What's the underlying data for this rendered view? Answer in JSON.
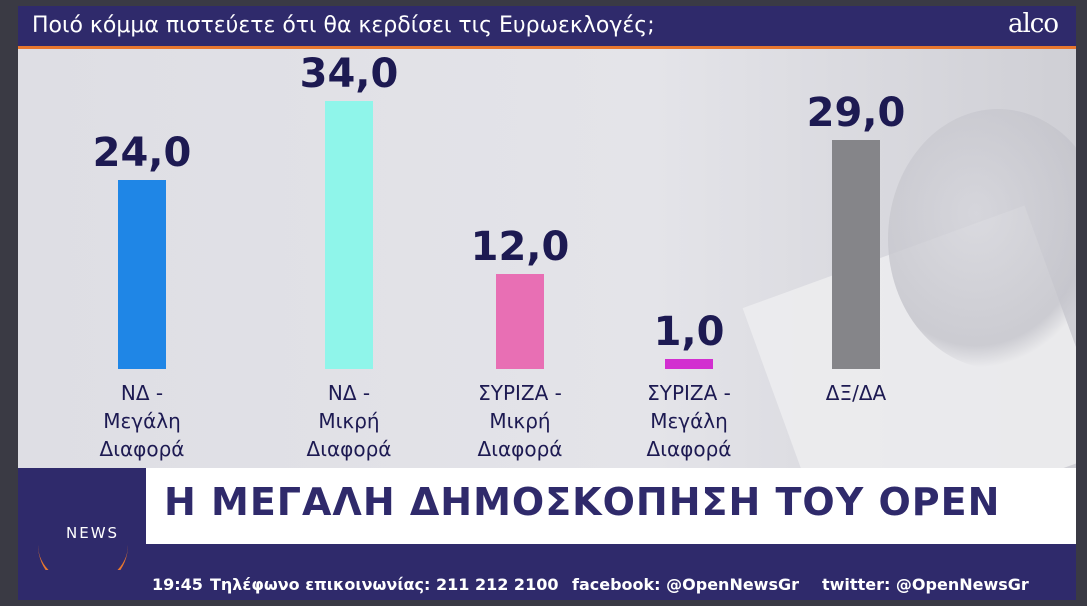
{
  "header": {
    "question": "Ποιό κόμμα πιστεύετε ότι θα κερδίσει τις Ευρωεκλογές;",
    "logo": "alco"
  },
  "chart_data": {
    "type": "bar",
    "categories": [
      [
        "ΝΔ -",
        "Μεγάλη",
        "Διαφορά"
      ],
      [
        "ΝΔ -",
        "Μικρή",
        "Διαφορά"
      ],
      [
        "ΣΥΡΙΖΑ -",
        "Μικρή",
        "Διαφορά"
      ],
      [
        "ΣΥΡΙΖΑ -",
        "Μεγάλη",
        "Διαφορά"
      ],
      [
        "ΔΞ/ΔΑ"
      ]
    ],
    "values": [
      24.0,
      34.0,
      12.0,
      1.0,
      29.0
    ],
    "value_labels": [
      "24,0",
      "34,0",
      "12,0",
      "1,0",
      "29,0"
    ],
    "colors": [
      "#1f86e6",
      "#8ff5ea",
      "#e86fb4",
      "#d22fd0",
      "#858589"
    ],
    "ylim": [
      0,
      34
    ]
  },
  "lower_third": {
    "channel_logo": "NEWS",
    "headline": "Η ΜΕΓΑΛΗ ΔΗΜΟΣΚΟΠΗΣΗ ΤΟΥ OPEN"
  },
  "ticker": {
    "time": "19:45",
    "phone": "Τηλέφωνο επικοινωνίας: 211 212 2100",
    "facebook": "facebook: @OpenNewsGr",
    "twitter": "twitter: @OpenNewsGr"
  }
}
